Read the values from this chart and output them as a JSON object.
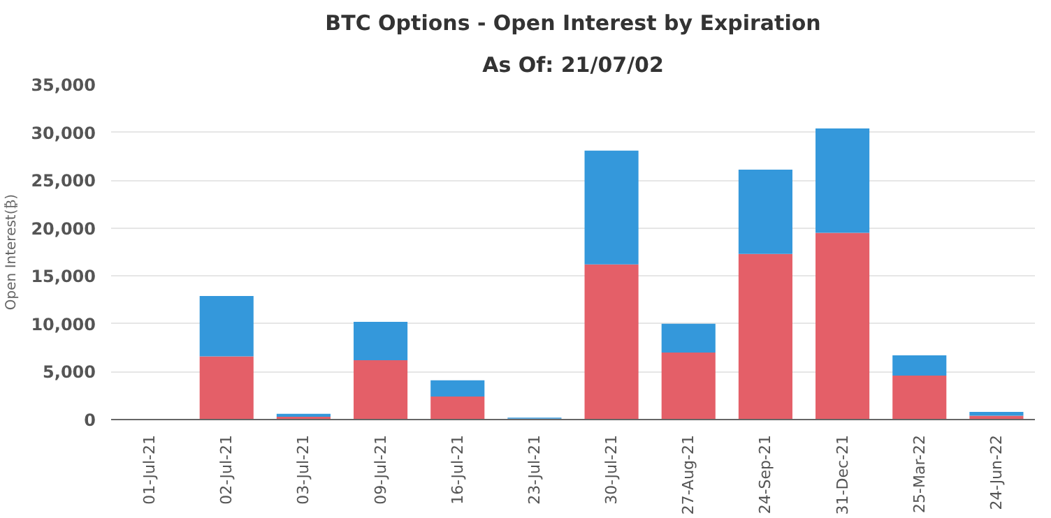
{
  "chart_data": {
    "type": "bar",
    "title": "BTC Options - Open Interest by Expiration",
    "subtitle": "As Of: 21/07/02",
    "ylabel": "Open Interest(₿)",
    "categories": [
      "01-Jul-21",
      "02-Jul-21",
      "03-Jul-21",
      "09-Jul-21",
      "16-Jul-21",
      "23-Jul-21",
      "30-Jul-21",
      "27-Aug-21",
      "24-Sep-21",
      "31-Dec-21",
      "25-Mar-22",
      "24-Jun-22"
    ],
    "stacked": true,
    "series": [
      {
        "color": "#e45f68",
        "values": [
          0,
          6600,
          300,
          6200,
          2400,
          100,
          16200,
          7000,
          17300,
          19500,
          4600,
          400
        ]
      },
      {
        "color": "#3498db",
        "values": [
          0,
          6300,
          300,
          4000,
          1700,
          100,
          11900,
          3000,
          8800,
          10900,
          2100,
          400
        ]
      }
    ],
    "ylim": [
      0,
      35000
    ],
    "yticks": [
      0,
      {
        "value": 5000,
        "label": "5,000"
      },
      {
        "value": 10000,
        "label": "10,000"
      },
      {
        "value": 15000,
        "label": "15,000"
      },
      {
        "value": 20000,
        "label": "20,000"
      },
      {
        "value": 25000,
        "label": "25,000"
      },
      {
        "value": 30000,
        "label": "30,000"
      },
      {
        "value": 35000,
        "label": "35,000"
      }
    ],
    "grid": "y"
  }
}
